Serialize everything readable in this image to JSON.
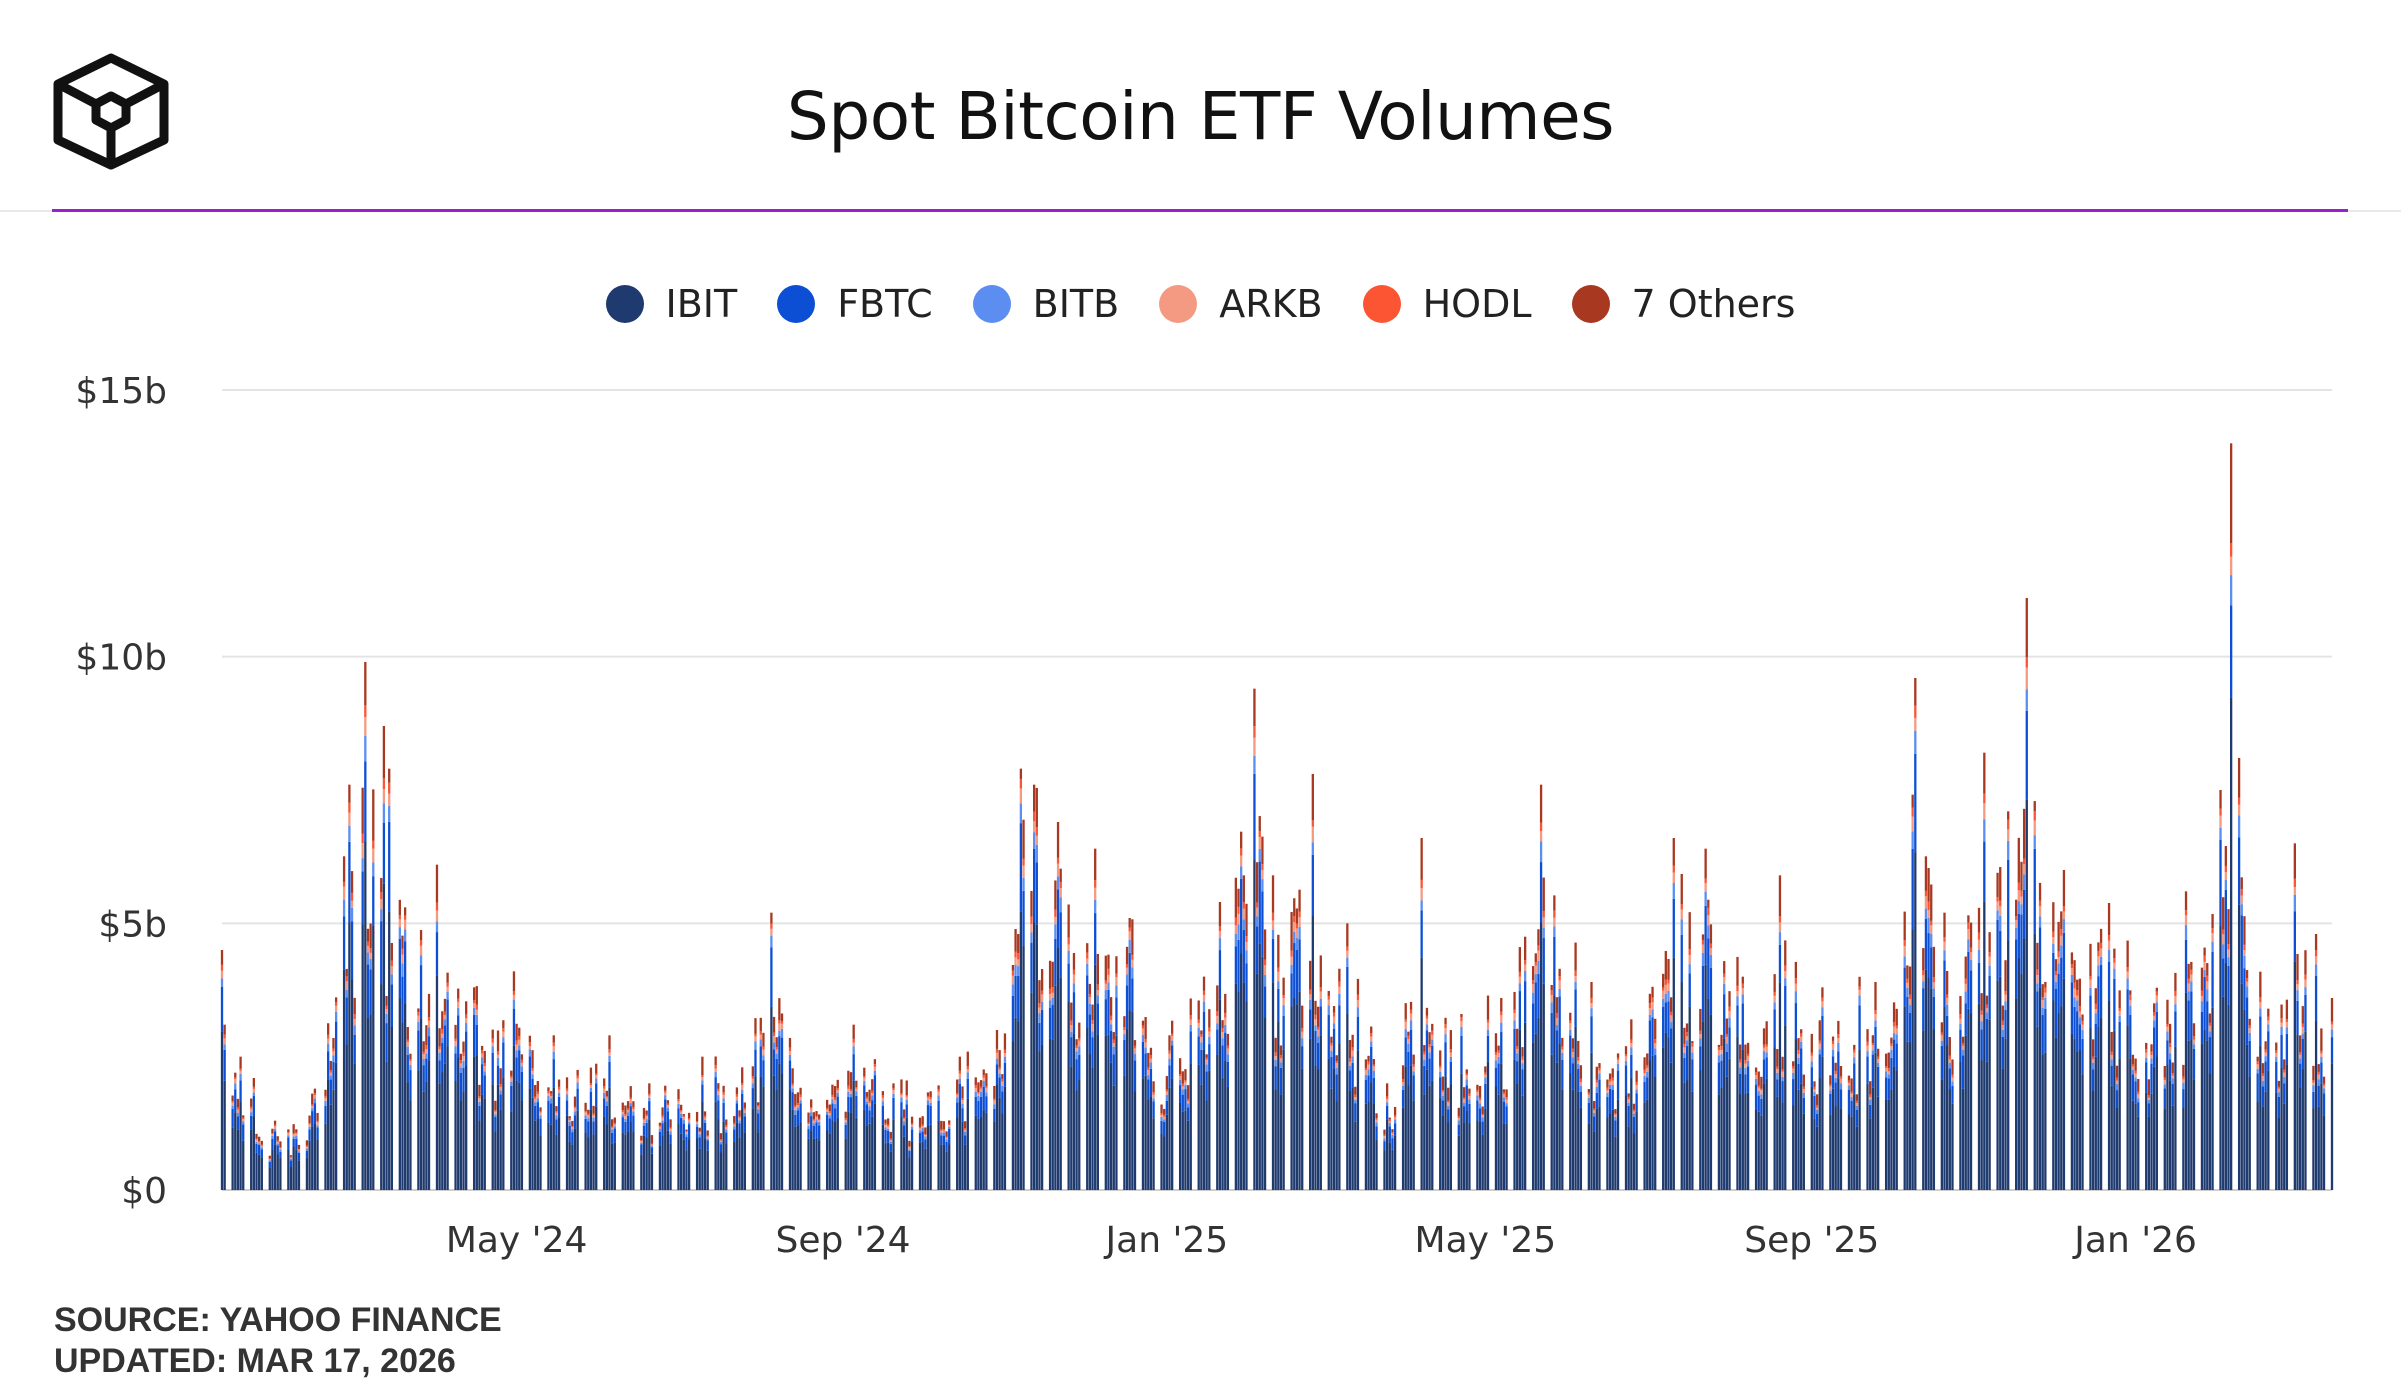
{
  "header": {
    "title": "Spot Bitcoin ETF Volumes",
    "logo_icon": "block-cube-logo-icon"
  },
  "colors": {
    "accent_line": "#9b1fcf",
    "IBIT": "#1f3a6e",
    "FBTC": "#0c4fd4",
    "BITB": "#5b8ef0",
    "ARKB": "#f59a82",
    "HODL": "#fb5533",
    "7 Others": "#a83820"
  },
  "legend": {
    "items": [
      {
        "label": "IBIT",
        "color": "#1f3a6e"
      },
      {
        "label": "FBTC",
        "color": "#0c4fd4"
      },
      {
        "label": "BITB",
        "color": "#5b8ef0"
      },
      {
        "label": "ARKB",
        "color": "#f59a82"
      },
      {
        "label": "HODL",
        "color": "#fb5533"
      },
      {
        "label": "7 Others",
        "color": "#a83820"
      }
    ]
  },
  "chart_data": {
    "type": "bar",
    "stacked": true,
    "title": "Spot Bitcoin ETF Volumes",
    "xlabel": "",
    "ylabel": "",
    "ylim": [
      0,
      15
    ],
    "y_unit": "billions USD",
    "y_ticks": [
      "$0",
      "$5b",
      "$10b",
      "$15b"
    ],
    "y_tick_values": [
      0,
      5,
      10,
      15
    ],
    "x_ticks": [
      "May '24",
      "Sep '24",
      "Jan '25",
      "May '25",
      "Sep '25",
      "Jan '26"
    ],
    "x_tick_dates": [
      "2024-05-01",
      "2024-09-01",
      "2025-01-01",
      "2025-05-01",
      "2025-09-01",
      "2026-01-01"
    ],
    "x_range": [
      "2024-01-11",
      "2026-03-16"
    ],
    "frequency": "trading days",
    "grid": true,
    "legend_position": "top-center",
    "series_names": [
      "IBIT",
      "FBTC",
      "BITB",
      "ARKB",
      "HODL",
      "7 Others"
    ],
    "series_share_of_total": [
      0.66,
      0.17,
      0.04,
      0.03,
      0.02,
      0.08
    ],
    "total_volume_anchors_billions": [
      [
        "2024-01-11",
        4.5
      ],
      [
        "2024-01-12",
        3.1
      ],
      [
        "2024-01-16",
        2.2
      ],
      [
        "2024-01-18",
        2.5
      ],
      [
        "2024-01-23",
        2.1
      ],
      [
        "2024-01-31",
        1.3
      ],
      [
        "2024-02-15",
        1.9
      ],
      [
        "2024-02-28",
        7.6
      ],
      [
        "2024-03-05",
        9.9
      ],
      [
        "2024-03-12",
        8.7
      ],
      [
        "2024-03-14",
        7.9
      ],
      [
        "2024-03-20",
        5.3
      ],
      [
        "2024-04-01",
        6.1
      ],
      [
        "2024-04-15",
        3.8
      ],
      [
        "2024-04-30",
        4.1
      ],
      [
        "2024-05-15",
        2.9
      ],
      [
        "2024-06-05",
        2.9
      ],
      [
        "2024-06-20",
        2.0
      ],
      [
        "2024-07-10",
        2.5
      ],
      [
        "2024-07-25",
        2.3
      ],
      [
        "2024-08-05",
        5.2
      ],
      [
        "2024-08-20",
        1.7
      ],
      [
        "2024-09-05",
        3.1
      ],
      [
        "2024-09-20",
        2.0
      ],
      [
        "2024-10-15",
        2.5
      ],
      [
        "2024-10-29",
        3.0
      ],
      [
        "2024-11-07",
        7.9
      ],
      [
        "2024-11-12",
        7.6
      ],
      [
        "2024-11-21",
        6.9
      ],
      [
        "2024-12-05",
        6.4
      ],
      [
        "2024-12-18",
        5.1
      ],
      [
        "2025-01-02",
        2.9
      ],
      [
        "2025-01-21",
        5.4
      ],
      [
        "2025-02-03",
        9.4
      ],
      [
        "2025-02-10",
        5.9
      ],
      [
        "2025-02-25",
        7.8
      ],
      [
        "2025-03-10",
        5.0
      ],
      [
        "2025-03-25",
        2.0
      ],
      [
        "2025-04-07",
        6.6
      ],
      [
        "2025-04-22",
        3.3
      ],
      [
        "2025-05-07",
        3.6
      ],
      [
        "2025-05-22",
        7.6
      ],
      [
        "2025-06-10",
        3.9
      ],
      [
        "2025-06-25",
        3.2
      ],
      [
        "2025-07-11",
        6.6
      ],
      [
        "2025-07-23",
        6.4
      ],
      [
        "2025-08-06",
        4.0
      ],
      [
        "2025-08-20",
        5.9
      ],
      [
        "2025-09-05",
        3.8
      ],
      [
        "2025-09-25",
        3.9
      ],
      [
        "2025-10-10",
        9.6
      ],
      [
        "2025-10-21",
        5.2
      ],
      [
        "2025-11-05",
        8.2
      ],
      [
        "2025-11-14",
        7.1
      ],
      [
        "2025-11-21",
        11.1
      ],
      [
        "2025-12-05",
        6.0
      ],
      [
        "2025-12-20",
        5.9
      ],
      [
        "2026-01-08",
        3.5
      ],
      [
        "2026-01-20",
        5.6
      ],
      [
        "2026-02-02",
        7.5
      ],
      [
        "2026-02-06",
        14.0
      ],
      [
        "2026-02-09",
        8.1
      ],
      [
        "2026-02-20",
        3.4
      ],
      [
        "2026-03-02",
        6.5
      ],
      [
        "2026-03-10",
        4.8
      ],
      [
        "2026-03-16",
        3.6
      ]
    ]
  },
  "footer": {
    "source": "SOURCE: YAHOO FINANCE",
    "updated": "UPDATED: MAR 17, 2026"
  }
}
